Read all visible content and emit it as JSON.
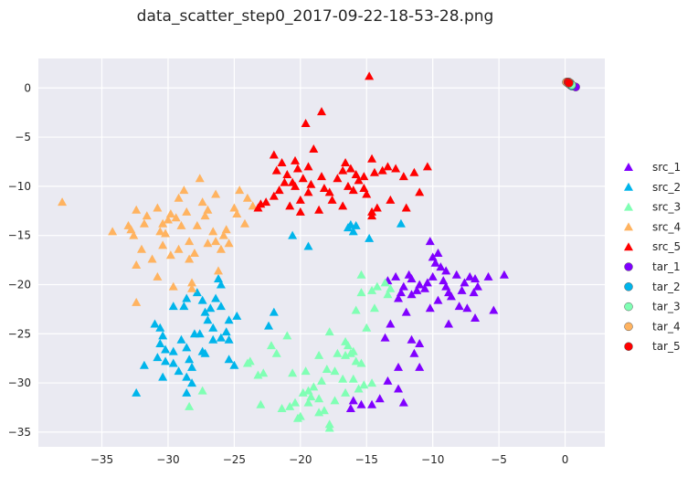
{
  "chart_data": {
    "type": "scatter",
    "title": "data_scatter_step0_2017-09-22-18-53-28.png",
    "xlabel": "",
    "ylabel": "",
    "xlim": [
      -39.8,
      3.0
    ],
    "ylim": [
      -36.5,
      3.0
    ],
    "xticks": [
      -35,
      -30,
      -25,
      -20,
      -15,
      -10,
      -5,
      0
    ],
    "yticks": [
      0,
      -5,
      -10,
      -15,
      -20,
      -25,
      -30,
      -35
    ],
    "xtick_labels": [
      "−35",
      "−30",
      "−25",
      "−20",
      "−15",
      "−10",
      "−5",
      "0"
    ],
    "ytick_labels": [
      "0",
      "−5",
      "−10",
      "−15",
      "−20",
      "−25",
      "−30",
      "−35"
    ],
    "grid": true,
    "legend_position": "right",
    "series": [
      {
        "name": "src_1",
        "marker": "triangle",
        "color": "#8000ff",
        "points": [
          [
            -10.2,
            -15.6
          ],
          [
            -10.0,
            -17.2
          ],
          [
            -9.6,
            -16.8
          ],
          [
            -9.8,
            -17.8
          ],
          [
            -9.4,
            -18.2
          ],
          [
            -9.0,
            -18.6
          ],
          [
            -9.2,
            -19.6
          ],
          [
            -9.0,
            -20.2
          ],
          [
            -10.0,
            -19.2
          ],
          [
            -10.4,
            -19.8
          ],
          [
            -10.6,
            -20.4
          ],
          [
            -11.0,
            -20.0
          ],
          [
            -11.2,
            -20.6
          ],
          [
            -11.6,
            -19.4
          ],
          [
            -11.8,
            -19.0
          ],
          [
            -12.2,
            -20.2
          ],
          [
            -12.4,
            -20.8
          ],
          [
            -12.6,
            -21.4
          ],
          [
            -11.6,
            -21.0
          ],
          [
            -12.0,
            -22.8
          ],
          [
            -12.8,
            -19.2
          ],
          [
            -13.4,
            -19.6
          ],
          [
            -8.8,
            -20.8
          ],
          [
            -8.6,
            -21.2
          ],
          [
            -8.2,
            -19.0
          ],
          [
            -7.6,
            -19.8
          ],
          [
            -7.8,
            -20.6
          ],
          [
            -7.2,
            -19.2
          ],
          [
            -6.8,
            -19.4
          ],
          [
            -6.6,
            -20.2
          ],
          [
            -6.9,
            -20.8
          ],
          [
            -5.8,
            -19.2
          ],
          [
            -4.6,
            -19.0
          ],
          [
            -5.4,
            -22.6
          ],
          [
            -6.8,
            -23.4
          ],
          [
            -7.4,
            -22.4
          ],
          [
            -8.0,
            -22.2
          ],
          [
            -8.8,
            -24.0
          ],
          [
            -10.2,
            -22.4
          ],
          [
            -9.6,
            -21.6
          ],
          [
            -13.2,
            -24.0
          ],
          [
            -13.6,
            -25.4
          ],
          [
            -11.6,
            -25.6
          ],
          [
            -11.0,
            -26.0
          ],
          [
            -11.4,
            -27.0
          ],
          [
            -11.0,
            -28.4
          ],
          [
            -12.6,
            -28.4
          ],
          [
            -13.4,
            -29.8
          ],
          [
            -12.6,
            -30.6
          ],
          [
            -14.0,
            -31.6
          ],
          [
            -14.6,
            -32.2
          ],
          [
            -12.2,
            -32.0
          ],
          [
            -16.2,
            -32.6
          ],
          [
            -15.4,
            -32.2
          ],
          [
            -16.0,
            -31.8
          ]
        ]
      },
      {
        "name": "src_2",
        "marker": "triangle",
        "color": "#00b5eb",
        "points": [
          [
            -32.4,
            -31.0
          ],
          [
            -31.8,
            -28.2
          ],
          [
            -31.0,
            -24.0
          ],
          [
            -30.6,
            -24.4
          ],
          [
            -30.4,
            -25.2
          ],
          [
            -30.6,
            -26.0
          ],
          [
            -30.2,
            -26.6
          ],
          [
            -30.8,
            -27.4
          ],
          [
            -30.2,
            -27.8
          ],
          [
            -30.4,
            -29.4
          ],
          [
            -29.6,
            -26.8
          ],
          [
            -29.6,
            -28.0
          ],
          [
            -29.2,
            -28.8
          ],
          [
            -29.6,
            -22.2
          ],
          [
            -28.8,
            -22.2
          ],
          [
            -28.6,
            -21.4
          ],
          [
            -29.0,
            -25.6
          ],
          [
            -28.6,
            -26.4
          ],
          [
            -28.4,
            -27.6
          ],
          [
            -28.2,
            -28.4
          ],
          [
            -28.6,
            -29.4
          ],
          [
            -28.2,
            -30.0
          ],
          [
            -28.6,
            -31.0
          ],
          [
            -28.0,
            -25.0
          ],
          [
            -27.6,
            -25.0
          ],
          [
            -27.8,
            -20.8
          ],
          [
            -27.4,
            -21.6
          ],
          [
            -27.2,
            -22.8
          ],
          [
            -27.0,
            -23.6
          ],
          [
            -26.8,
            -22.4
          ],
          [
            -26.6,
            -24.4
          ],
          [
            -26.4,
            -21.4
          ],
          [
            -26.0,
            -22.2
          ],
          [
            -26.2,
            -19.4
          ],
          [
            -26.0,
            -20.0
          ],
          [
            -25.6,
            -24.8
          ],
          [
            -25.4,
            -25.6
          ],
          [
            -26.0,
            -25.4
          ],
          [
            -26.6,
            -25.6
          ],
          [
            -25.4,
            -27.6
          ],
          [
            -25.0,
            -28.2
          ],
          [
            -27.2,
            -27.0
          ],
          [
            -25.4,
            -23.6
          ],
          [
            -24.8,
            -23.2
          ],
          [
            -22.4,
            -24.2
          ],
          [
            -22.0,
            -22.8
          ],
          [
            -20.6,
            -15.0
          ],
          [
            -19.4,
            -16.1
          ],
          [
            -16.4,
            -14.2
          ],
          [
            -16.2,
            -13.9
          ],
          [
            -16.0,
            -14.6
          ],
          [
            -15.8,
            -14.0
          ],
          [
            -14.8,
            -15.3
          ],
          [
            -12.4,
            -13.8
          ],
          [
            -27.4,
            -26.8
          ]
        ]
      },
      {
        "name": "src_3",
        "marker": "triangle",
        "color": "#80ffb4",
        "points": [
          [
            -15.4,
            -19.0
          ],
          [
            -14.6,
            -20.6
          ],
          [
            -14.2,
            -20.2
          ],
          [
            -15.4,
            -20.8
          ],
          [
            -13.6,
            -19.8
          ],
          [
            -13.2,
            -20.4
          ],
          [
            -13.4,
            -21.0
          ],
          [
            -14.4,
            -22.4
          ],
          [
            -15.8,
            -22.6
          ],
          [
            -15.0,
            -24.4
          ],
          [
            -16.6,
            -25.8
          ],
          [
            -16.4,
            -26.2
          ],
          [
            -17.8,
            -24.8
          ],
          [
            -16.0,
            -26.8
          ],
          [
            -16.6,
            -27.2
          ],
          [
            -17.2,
            -27.0
          ],
          [
            -17.4,
            -28.8
          ],
          [
            -15.8,
            -27.8
          ],
          [
            -15.4,
            -28.0
          ],
          [
            -15.2,
            -30.2
          ],
          [
            -15.6,
            -30.6
          ],
          [
            -16.0,
            -29.6
          ],
          [
            -16.8,
            -29.6
          ],
          [
            -18.6,
            -27.2
          ],
          [
            -18.0,
            -28.6
          ],
          [
            -18.4,
            -29.8
          ],
          [
            -19.0,
            -30.4
          ],
          [
            -19.4,
            -30.8
          ],
          [
            -19.8,
            -31.0
          ],
          [
            -19.2,
            -31.4
          ],
          [
            -18.6,
            -31.6
          ],
          [
            -18.2,
            -32.8
          ],
          [
            -18.6,
            -33.0
          ],
          [
            -19.4,
            -32.0
          ],
          [
            -20.0,
            -33.4
          ],
          [
            -20.4,
            -32.0
          ],
          [
            -20.8,
            -32.4
          ],
          [
            -21.4,
            -32.6
          ],
          [
            -20.2,
            -33.6
          ],
          [
            -17.8,
            -34.2
          ],
          [
            -17.8,
            -34.6
          ],
          [
            -17.4,
            -31.8
          ],
          [
            -16.6,
            -31.0
          ],
          [
            -21.0,
            -25.2
          ],
          [
            -21.8,
            -27.0
          ],
          [
            -22.2,
            -26.2
          ],
          [
            -22.8,
            -29.0
          ],
          [
            -23.0,
            -32.2
          ],
          [
            -23.2,
            -29.2
          ],
          [
            -23.8,
            -27.8
          ],
          [
            -24.0,
            -28.0
          ],
          [
            -27.4,
            -30.8
          ],
          [
            -28.4,
            -32.4
          ],
          [
            -14.6,
            -30.0
          ],
          [
            -20.6,
            -29.0
          ],
          [
            -19.6,
            -28.8
          ],
          [
            -16.2,
            -27.0
          ]
        ]
      },
      {
        "name": "src_4",
        "marker": "triangle",
        "color": "#ffb360",
        "points": [
          [
            -38.0,
            -11.6
          ],
          [
            -34.2,
            -14.6
          ],
          [
            -33.0,
            -14.0
          ],
          [
            -32.8,
            -14.4
          ],
          [
            -32.6,
            -15.0
          ],
          [
            -32.4,
            -12.4
          ],
          [
            -32.4,
            -18.0
          ],
          [
            -32.4,
            -21.8
          ],
          [
            -32.0,
            -16.4
          ],
          [
            -31.8,
            -13.8
          ],
          [
            -31.6,
            -13.0
          ],
          [
            -31.2,
            -17.4
          ],
          [
            -30.8,
            -12.2
          ],
          [
            -30.8,
            -19.2
          ],
          [
            -30.6,
            -14.6
          ],
          [
            -30.4,
            -16.0
          ],
          [
            -30.2,
            -14.8
          ],
          [
            -30.0,
            -13.4
          ],
          [
            -29.8,
            -12.8
          ],
          [
            -29.8,
            -17.0
          ],
          [
            -29.6,
            -20.2
          ],
          [
            -29.2,
            -11.2
          ],
          [
            -29.2,
            -16.4
          ],
          [
            -29.0,
            -14.0
          ],
          [
            -28.8,
            -10.4
          ],
          [
            -28.6,
            -12.6
          ],
          [
            -28.4,
            -15.6
          ],
          [
            -28.4,
            -17.4
          ],
          [
            -28.2,
            -19.8
          ],
          [
            -28.2,
            -20.4
          ],
          [
            -28.0,
            -16.8
          ],
          [
            -27.8,
            -14.0
          ],
          [
            -27.6,
            -9.2
          ],
          [
            -27.4,
            -11.6
          ],
          [
            -27.2,
            -13.0
          ],
          [
            -27.0,
            -12.4
          ],
          [
            -27.0,
            -15.8
          ],
          [
            -26.6,
            -14.6
          ],
          [
            -26.4,
            -15.6
          ],
          [
            -26.2,
            -18.6
          ],
          [
            -26.0,
            -16.4
          ],
          [
            -25.8,
            -15.0
          ],
          [
            -25.6,
            -14.4
          ],
          [
            -25.4,
            -15.8
          ],
          [
            -25.0,
            -12.2
          ],
          [
            -24.8,
            -12.8
          ],
          [
            -24.6,
            -10.4
          ],
          [
            -24.2,
            -13.8
          ],
          [
            -24.0,
            -11.2
          ],
          [
            -23.6,
            -12.0
          ],
          [
            -30.4,
            -13.8
          ],
          [
            -26.4,
            -10.8
          ],
          [
            -29.4,
            -13.2
          ]
        ]
      },
      {
        "name": "src_5",
        "marker": "triangle",
        "color": "#ff0000",
        "points": [
          [
            -14.8,
            1.2
          ],
          [
            -19.6,
            -3.6
          ],
          [
            -18.4,
            -2.4
          ],
          [
            -19.0,
            -6.2
          ],
          [
            -22.0,
            -6.8
          ],
          [
            -21.4,
            -7.6
          ],
          [
            -20.4,
            -7.4
          ],
          [
            -21.8,
            -8.4
          ],
          [
            -21.0,
            -8.8
          ],
          [
            -20.2,
            -8.2
          ],
          [
            -19.4,
            -8.0
          ],
          [
            -19.8,
            -9.2
          ],
          [
            -20.6,
            -9.6
          ],
          [
            -20.4,
            -10.0
          ],
          [
            -21.2,
            -9.6
          ],
          [
            -21.6,
            -10.4
          ],
          [
            -22.0,
            -11.0
          ],
          [
            -22.6,
            -11.6
          ],
          [
            -23.0,
            -11.8
          ],
          [
            -23.2,
            -12.2
          ],
          [
            -20.0,
            -11.4
          ],
          [
            -19.4,
            -10.6
          ],
          [
            -19.2,
            -9.8
          ],
          [
            -18.4,
            -9.0
          ],
          [
            -18.2,
            -10.2
          ],
          [
            -17.8,
            -10.6
          ],
          [
            -17.6,
            -11.4
          ],
          [
            -17.2,
            -9.2
          ],
          [
            -16.8,
            -8.4
          ],
          [
            -16.6,
            -7.6
          ],
          [
            -16.2,
            -8.2
          ],
          [
            -16.4,
            -10.0
          ],
          [
            -16.0,
            -10.4
          ],
          [
            -15.8,
            -8.8
          ],
          [
            -15.6,
            -9.4
          ],
          [
            -15.2,
            -9.0
          ],
          [
            -15.2,
            -10.2
          ],
          [
            -15.0,
            -10.8
          ],
          [
            -14.6,
            -7.2
          ],
          [
            -14.4,
            -8.6
          ],
          [
            -14.6,
            -12.6
          ],
          [
            -14.2,
            -12.2
          ],
          [
            -14.6,
            -13.0
          ],
          [
            -13.8,
            -8.4
          ],
          [
            -13.4,
            -8.0
          ],
          [
            -13.2,
            -11.4
          ],
          [
            -12.8,
            -8.2
          ],
          [
            -12.2,
            -9.0
          ],
          [
            -12.0,
            -12.2
          ],
          [
            -11.4,
            -8.6
          ],
          [
            -10.4,
            -8.0
          ],
          [
            -11.0,
            -10.6
          ],
          [
            -16.8,
            -12.0
          ],
          [
            -18.6,
            -12.4
          ],
          [
            -20.0,
            -12.6
          ],
          [
            -20.8,
            -12.0
          ]
        ]
      },
      {
        "name": "tar_1",
        "marker": "circle",
        "color": "#8000ff",
        "points": [
          [
            0.6,
            0.2
          ],
          [
            0.8,
            0.1
          ],
          [
            0.5,
            0.3
          ]
        ]
      },
      {
        "name": "tar_2",
        "marker": "circle",
        "color": "#00b5eb",
        "points": [
          [
            0.4,
            0.3
          ],
          [
            0.5,
            0.2
          ]
        ]
      },
      {
        "name": "tar_3",
        "marker": "circle",
        "color": "#80ffb4",
        "points": [
          [
            0.3,
            0.4
          ],
          [
            0.4,
            0.5
          ],
          [
            0.5,
            0.3
          ]
        ]
      },
      {
        "name": "tar_4",
        "marker": "circle",
        "color": "#ffb360",
        "points": [
          [
            0.2,
            0.5
          ],
          [
            0.3,
            0.6
          ],
          [
            0.1,
            0.6
          ]
        ]
      },
      {
        "name": "tar_5",
        "marker": "circle",
        "color": "#ff0000",
        "points": [
          [
            0.2,
            0.6
          ],
          [
            0.3,
            0.5
          ]
        ]
      }
    ]
  },
  "colors": {
    "plot_background": "#eaeaf2",
    "grid": "#ffffff",
    "text": "#262626"
  }
}
